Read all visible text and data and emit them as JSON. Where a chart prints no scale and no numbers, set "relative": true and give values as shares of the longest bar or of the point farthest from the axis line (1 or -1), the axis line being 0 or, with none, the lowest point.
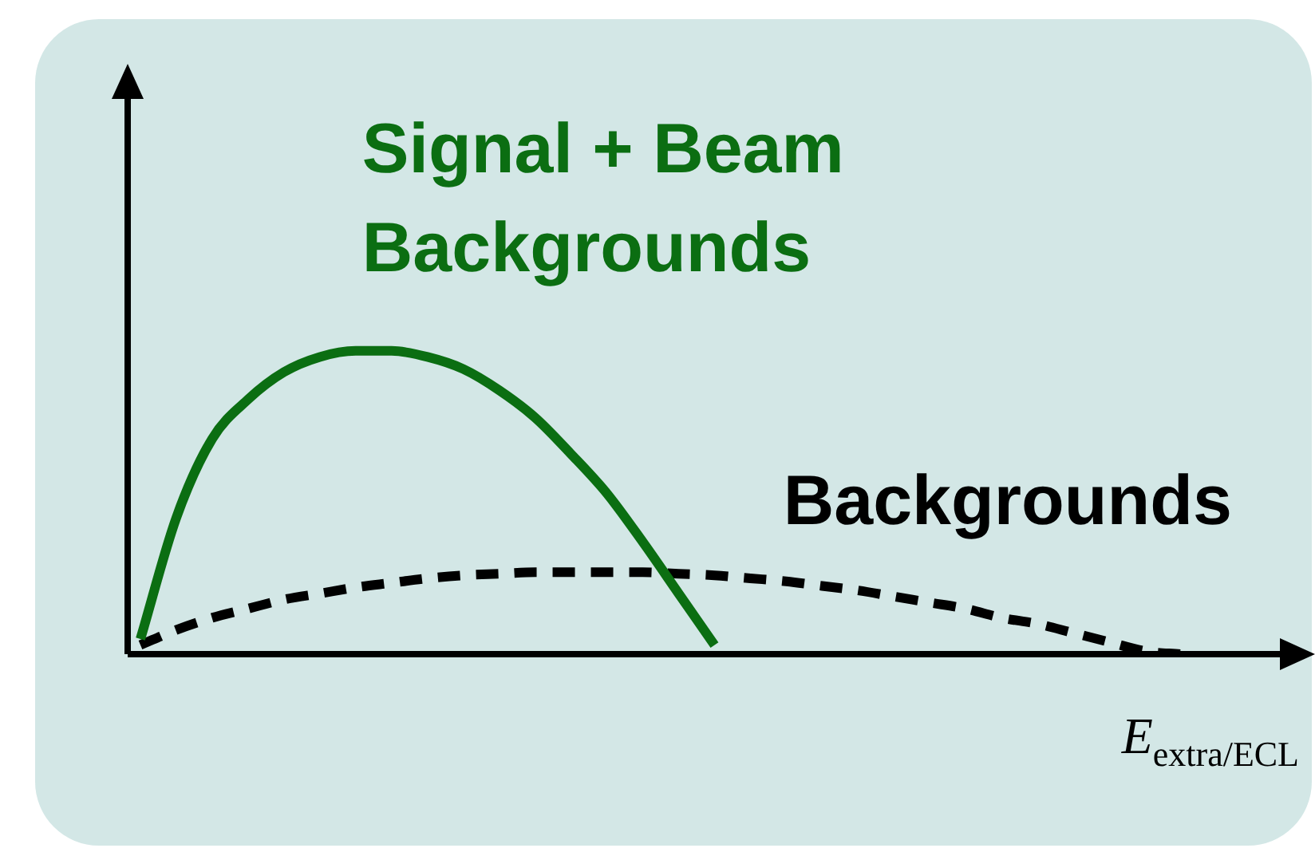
{
  "chart_data": {
    "type": "line",
    "relative": true,
    "xlabel": "E$_{extra/ECL}$",
    "categories": [
      null,
      null,
      null,
      null,
      null,
      null,
      null,
      null,
      null,
      null,
      null,
      null,
      null,
      null,
      null,
      null,
      null,
      null,
      null,
      null,
      null,
      null,
      null,
      null,
      null,
      null,
      null,
      null,
      null,
      null
    ],
    "series": [
      {
        "name": "Signal + Beam Backgrounds",
        "color": "#0b6e12",
        "line_style": "solid",
        "values": [
          0.05,
          0.45,
          0.71,
          0.84,
          0.93,
          0.98,
          1.0,
          1.0,
          0.98,
          0.94,
          0.87,
          0.78,
          0.66,
          0.53,
          0.37,
          0.2,
          0.03,
          null,
          null,
          null,
          null,
          null,
          null,
          null,
          null,
          null,
          null,
          null,
          null,
          null
        ]
      },
      {
        "name": "Backgrounds",
        "color": "#000000",
        "line_style": "dashed",
        "values": [
          0.03,
          0.08,
          0.12,
          0.15,
          0.18,
          0.2,
          0.22,
          0.235,
          0.25,
          0.26,
          0.265,
          0.27,
          0.27,
          0.27,
          0.27,
          0.265,
          0.26,
          0.25,
          0.24,
          0.225,
          0.21,
          0.19,
          0.17,
          0.15,
          0.12,
          0.1,
          0.07,
          0.04,
          0.01,
          0.0
        ]
      }
    ],
    "legend": false,
    "marker": "none"
  }
}
